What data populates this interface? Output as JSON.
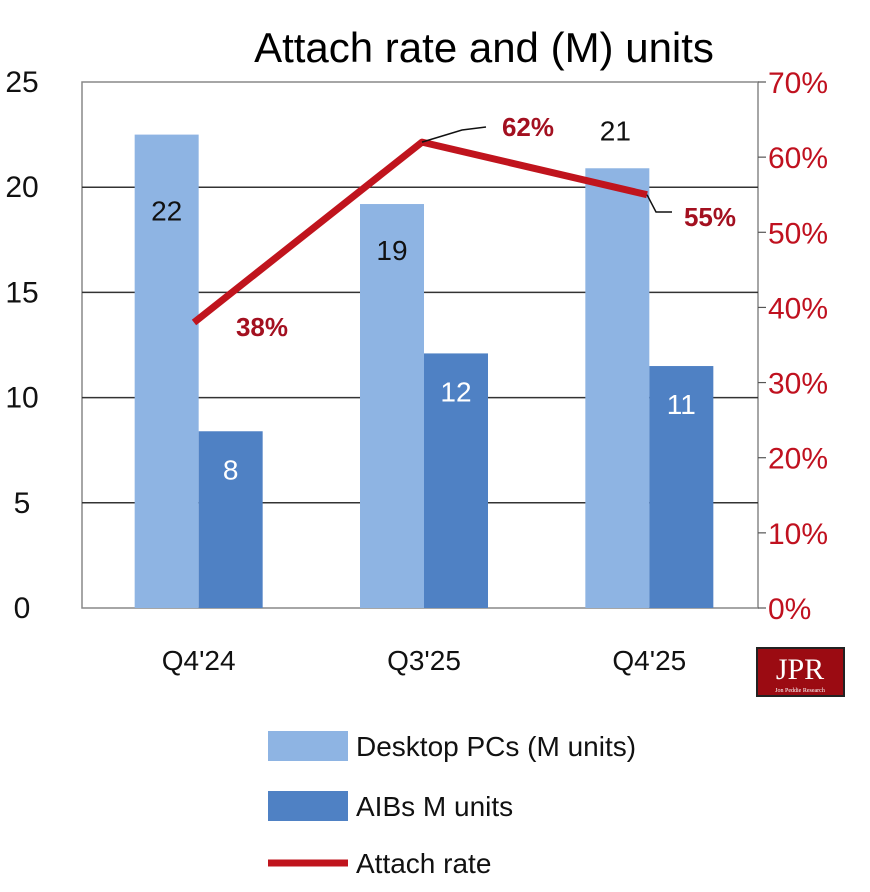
{
  "chart_data": {
    "type": "bar",
    "title": "Attach rate and (M) units",
    "categories": [
      "Q4'24",
      "Q3'25",
      "Q4'25"
    ],
    "series": [
      {
        "name": "Desktop PCs (M units)",
        "type": "bar",
        "axis": "left",
        "color": "#8eb4e3",
        "values": [
          22.5,
          19.2,
          20.9
        ],
        "labels": [
          "22",
          "19",
          "21"
        ]
      },
      {
        "name": "AIBs M units",
        "type": "bar",
        "axis": "left",
        "color": "#4f81c4",
        "values": [
          8.4,
          12.1,
          11.5
        ],
        "labels": [
          "8",
          "12",
          "11"
        ]
      },
      {
        "name": "Attach rate",
        "type": "line",
        "axis": "right",
        "color": "#c0141d",
        "values": [
          38,
          62,
          55
        ],
        "labels": [
          "38%",
          "62%",
          "55%"
        ]
      }
    ],
    "y_left": {
      "ylim": [
        0,
        25
      ],
      "ticks": [
        "0",
        "5",
        "10",
        "15",
        "20",
        "25"
      ]
    },
    "y_right": {
      "ylim": [
        0,
        70
      ],
      "ticks": [
        "0%",
        "10%",
        "20%",
        "30%",
        "40%",
        "50%",
        "60%",
        "70%"
      ],
      "color": "#c0111f"
    },
    "grid": true,
    "legend_position": "bottom"
  },
  "logo": {
    "text": "JPR",
    "subtext": "Jon Peddie Research"
  }
}
